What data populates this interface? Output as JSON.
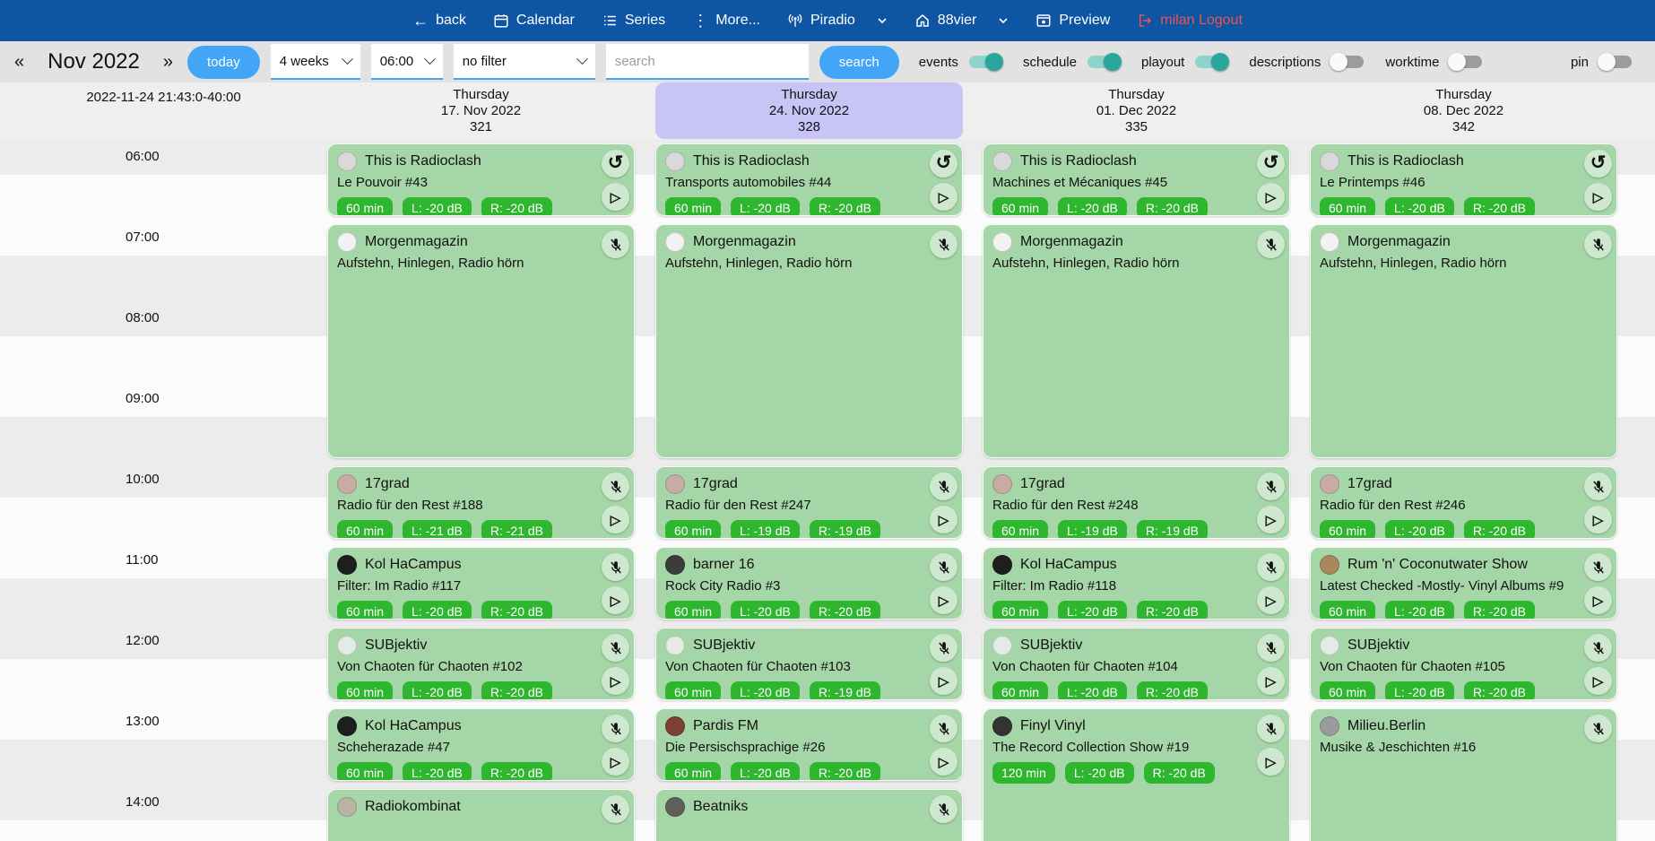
{
  "colors": {
    "topbar_bg": "#0e56a3",
    "accent_blue": "#42a5f5",
    "logout_red": "#ef5350",
    "card_green": "#a5d6a7",
    "badge_green": "#2eb62e",
    "highlight_purple": "#c8c5f6",
    "toggle_on_knob": "#2aa79c",
    "toggle_on_track": "#8fd3cc"
  },
  "topnav": {
    "back": "back",
    "calendar": "Calendar",
    "series": "Series",
    "more": "More...",
    "station1": "Piradio",
    "station2": "88vier",
    "preview": "Preview",
    "logout": "milan Logout"
  },
  "toolbar": {
    "prev": "«",
    "next": "»",
    "month_label": "Nov 2022",
    "today_label": "today",
    "range_select": "4 weeks",
    "time_select": "06:00",
    "filter_select": "no filter",
    "search_placeholder": "search",
    "search_label": "search",
    "toggles": [
      {
        "label": "events",
        "on": true
      },
      {
        "label": "schedule",
        "on": true
      },
      {
        "label": "playout",
        "on": true
      },
      {
        "label": "descriptions",
        "on": false
      },
      {
        "label": "worktime",
        "on": false
      },
      {
        "label": "pin",
        "on": false
      }
    ]
  },
  "grid": {
    "timestamp": "2022-11-24 21:43:0-40:00",
    "hours": [
      "06:00",
      "07:00",
      "08:00",
      "09:00",
      "10:00",
      "11:00",
      "12:00",
      "13:00",
      "14:00"
    ],
    "columns": [
      {
        "weekday": "Thursday",
        "date": "17. Nov 2022",
        "day_number": "321",
        "highlighted": false,
        "events": [
          {
            "show": "This is Radioclash",
            "episode": "Le Pouvoir #43",
            "badges": [
              "60 min",
              "L: -20 dB",
              "R: -20 dB"
            ],
            "icons": [
              "repeat",
              "play"
            ],
            "start": 6,
            "duration": 1,
            "avatar_color": "#d9d9d9"
          },
          {
            "show": "Morgenmagazin",
            "episode": "Aufstehn, Hinlegen, Radio hörn",
            "badges": [],
            "icons": [
              "mic-off"
            ],
            "start": 7,
            "duration": 3,
            "avatar_color": "#f2f2f2"
          },
          {
            "show": "17grad",
            "episode": "Radio für den Rest #188",
            "badges": [
              "60 min",
              "L: -21 dB",
              "R: -21 dB"
            ],
            "icons": [
              "mic-off",
              "play"
            ],
            "start": 10,
            "duration": 1,
            "avatar_color": "#c9aba6"
          },
          {
            "show": "Kol HaCampus",
            "episode": "Filter: Im Radio #117",
            "badges": [
              "60 min",
              "L: -20 dB",
              "R: -20 dB"
            ],
            "icons": [
              "mic-off",
              "play"
            ],
            "start": 11,
            "duration": 1,
            "avatar_color": "#1e1e1e"
          },
          {
            "show": "SUBjektiv",
            "episode": "Von Chaoten für Chaoten #102",
            "badges": [
              "60 min",
              "L: -20 dB",
              "R: -20 dB"
            ],
            "icons": [
              "mic-off",
              "play"
            ],
            "start": 12,
            "duration": 1,
            "avatar_color": "#e3ece4"
          },
          {
            "show": "Kol HaCampus",
            "episode": "Scheherazade #47",
            "badges": [
              "60 min",
              "L: -20 dB",
              "R: -20 dB"
            ],
            "icons": [
              "mic-off",
              "play"
            ],
            "start": 13,
            "duration": 1,
            "avatar_color": "#1e1e1e"
          },
          {
            "show": "Radiokombinat",
            "episode": "",
            "badges": [],
            "icons": [
              "mic-off"
            ],
            "start": 14,
            "duration": 1,
            "avatar_color": "#b9b3a4"
          }
        ]
      },
      {
        "weekday": "Thursday",
        "date": "24. Nov 2022",
        "day_number": "328",
        "highlighted": true,
        "events": [
          {
            "show": "This is Radioclash",
            "episode": "Transports automobiles #44",
            "badges": [
              "60 min",
              "L: -20 dB",
              "R: -20 dB"
            ],
            "icons": [
              "repeat",
              "play"
            ],
            "start": 6,
            "duration": 1,
            "avatar_color": "#d9d9d9"
          },
          {
            "show": "Morgenmagazin",
            "episode": "Aufstehn, Hinlegen, Radio hörn",
            "badges": [],
            "icons": [
              "mic-off"
            ],
            "start": 7,
            "duration": 3,
            "avatar_color": "#f2f2f2"
          },
          {
            "show": "17grad",
            "episode": "Radio für den Rest #247",
            "badges": [
              "60 min",
              "L: -19 dB",
              "R: -19 dB"
            ],
            "icons": [
              "mic-off",
              "play"
            ],
            "start": 10,
            "duration": 1,
            "avatar_color": "#c9aba6"
          },
          {
            "show": "barner 16",
            "episode": "Rock City Radio #3",
            "badges": [
              "60 min",
              "L: -20 dB",
              "R: -20 dB"
            ],
            "icons": [
              "mic-off",
              "play"
            ],
            "start": 11,
            "duration": 1,
            "avatar_color": "#3c3c3c"
          },
          {
            "show": "SUBjektiv",
            "episode": "Von Chaoten für Chaoten #103",
            "badges": [
              "60 min",
              "L: -20 dB",
              "R: -19 dB"
            ],
            "icons": [
              "mic-off",
              "play"
            ],
            "start": 12,
            "duration": 1,
            "avatar_color": "#e3ece4"
          },
          {
            "show": "Pardis FM",
            "episode": "Die Persischsprachige #26",
            "badges": [
              "60 min",
              "L: -20 dB",
              "R: -20 dB"
            ],
            "icons": [
              "mic-off",
              "play"
            ],
            "start": 13,
            "duration": 1,
            "avatar_color": "#7c4034"
          },
          {
            "show": "Beatniks",
            "episode": "",
            "badges": [],
            "icons": [
              "mic-off"
            ],
            "start": 14,
            "duration": 1,
            "avatar_color": "#5f5f5a"
          }
        ]
      },
      {
        "weekday": "Thursday",
        "date": "01. Dec 2022",
        "day_number": "335",
        "highlighted": false,
        "events": [
          {
            "show": "This is Radioclash",
            "episode": "Machines et Mécaniques #45",
            "badges": [
              "60 min",
              "L: -20 dB",
              "R: -20 dB"
            ],
            "icons": [
              "repeat",
              "play"
            ],
            "start": 6,
            "duration": 1,
            "avatar_color": "#d9d9d9"
          },
          {
            "show": "Morgenmagazin",
            "episode": "Aufstehn, Hinlegen, Radio hörn",
            "badges": [],
            "icons": [
              "mic-off"
            ],
            "start": 7,
            "duration": 3,
            "avatar_color": "#f2f2f2"
          },
          {
            "show": "17grad",
            "episode": "Radio für den Rest #248",
            "badges": [
              "60 min",
              "L: -19 dB",
              "R: -19 dB"
            ],
            "icons": [
              "mic-off",
              "play"
            ],
            "start": 10,
            "duration": 1,
            "avatar_color": "#c9aba6"
          },
          {
            "show": "Kol HaCampus",
            "episode": "Filter: Im Radio #118",
            "badges": [
              "60 min",
              "L: -20 dB",
              "R: -20 dB"
            ],
            "icons": [
              "mic-off",
              "play"
            ],
            "start": 11,
            "duration": 1,
            "avatar_color": "#1e1e1e"
          },
          {
            "show": "SUBjektiv",
            "episode": "Von Chaoten für Chaoten #104",
            "badges": [
              "60 min",
              "L: -20 dB",
              "R: -20 dB"
            ],
            "icons": [
              "mic-off",
              "play"
            ],
            "start": 12,
            "duration": 1,
            "avatar_color": "#e3ece4"
          },
          {
            "show": "Finyl Vinyl",
            "episode": "The Record Collection Show #19",
            "badges": [
              "120 min",
              "L: -20 dB",
              "R: -20 dB"
            ],
            "icons": [
              "mic-off",
              "play"
            ],
            "start": 13,
            "duration": 2,
            "avatar_color": "#333333"
          }
        ]
      },
      {
        "weekday": "Thursday",
        "date": "08. Dec 2022",
        "day_number": "342",
        "highlighted": false,
        "events": [
          {
            "show": "This is Radioclash",
            "episode": "Le Printemps #46",
            "badges": [
              "60 min",
              "L: -20 dB",
              "R: -20 dB"
            ],
            "icons": [
              "repeat",
              "play"
            ],
            "start": 6,
            "duration": 1,
            "avatar_color": "#d9d9d9"
          },
          {
            "show": "Morgenmagazin",
            "episode": "Aufstehn, Hinlegen, Radio hörn",
            "badges": [],
            "icons": [
              "mic-off"
            ],
            "start": 7,
            "duration": 3,
            "avatar_color": "#f2f2f2"
          },
          {
            "show": "17grad",
            "episode": "Radio für den Rest #246",
            "badges": [
              "60 min",
              "L: -20 dB",
              "R: -20 dB"
            ],
            "icons": [
              "mic-off",
              "play"
            ],
            "start": 10,
            "duration": 1,
            "avatar_color": "#c9aba6"
          },
          {
            "show": "Rum 'n' Coconutwater Show",
            "episode": "Latest Checked -Mostly- Vinyl Albums #9",
            "badges": [
              "60 min",
              "L: -20 dB",
              "R: -20 dB"
            ],
            "icons": [
              "mic-off",
              "play"
            ],
            "start": 11,
            "duration": 1,
            "avatar_color": "#a8895e"
          },
          {
            "show": "SUBjektiv",
            "episode": "Von Chaoten für Chaoten #105",
            "badges": [
              "60 min",
              "L: -20 dB",
              "R: -20 dB"
            ],
            "icons": [
              "mic-off",
              "play"
            ],
            "start": 12,
            "duration": 1,
            "avatar_color": "#e3ece4"
          },
          {
            "show": "Milieu.Berlin",
            "episode": "Musike & Jeschichten #16",
            "badges": [],
            "icons": [
              "mic-off"
            ],
            "start": 13,
            "duration": 2,
            "avatar_color": "#9b9b9b"
          }
        ]
      }
    ]
  }
}
